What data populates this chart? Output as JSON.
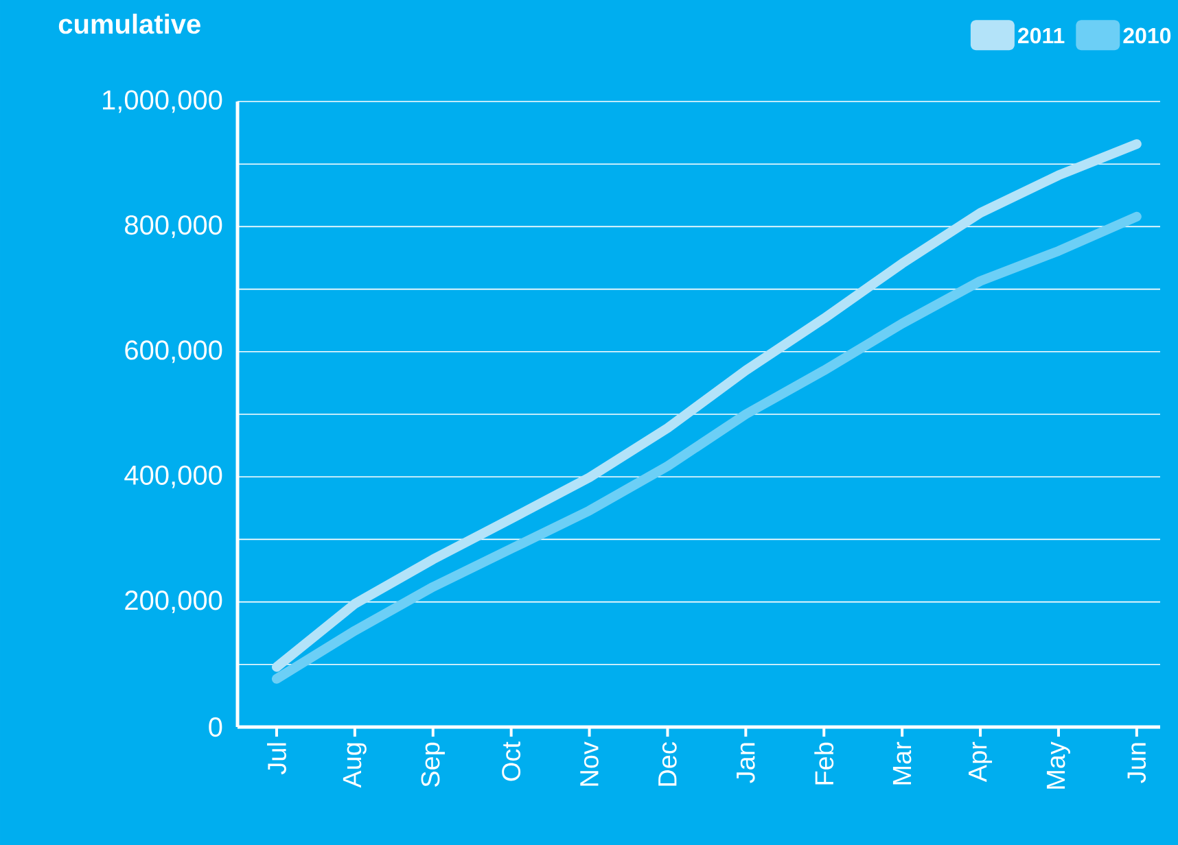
{
  "chart_data": {
    "type": "line",
    "title": "cumulative",
    "categories": [
      "Jul",
      "Aug",
      "Sep",
      "Oct",
      "Nov",
      "Dec",
      "Jan",
      "Feb",
      "Mar",
      "Apr",
      "May",
      "Jun"
    ],
    "series": [
      {
        "name": "2011",
        "color": "#b3e3f9",
        "values": [
          96000,
          197000,
          268000,
          333000,
          399000,
          478000,
          570000,
          653000,
          741000,
          822000,
          882000,
          932000
        ]
      },
      {
        "name": "2010",
        "color": "#6ccff6",
        "values": [
          77000,
          154000,
          224000,
          285000,
          346000,
          417000,
          500000,
          570000,
          645000,
          713000,
          761000,
          816000
        ]
      }
    ],
    "ylim": [
      0,
      1000000
    ],
    "yticks": [
      0,
      {
        "value": 100000,
        "label": null
      },
      {
        "value": 200000,
        "label": "200,000"
      },
      {
        "value": 300000,
        "label": null
      },
      {
        "value": 400000,
        "label": "400,000"
      },
      {
        "value": 500000,
        "label": null
      },
      {
        "value": 600000,
        "label": "600,000"
      },
      {
        "value": 700000,
        "label": null
      },
      {
        "value": 800000,
        "label": "800,000"
      },
      {
        "value": 900000,
        "label": null
      },
      {
        "value": 1000000,
        "label": "1,000,000"
      }
    ],
    "grid": "y",
    "legend": "top right",
    "marker": "none",
    "line_style": "solid"
  }
}
